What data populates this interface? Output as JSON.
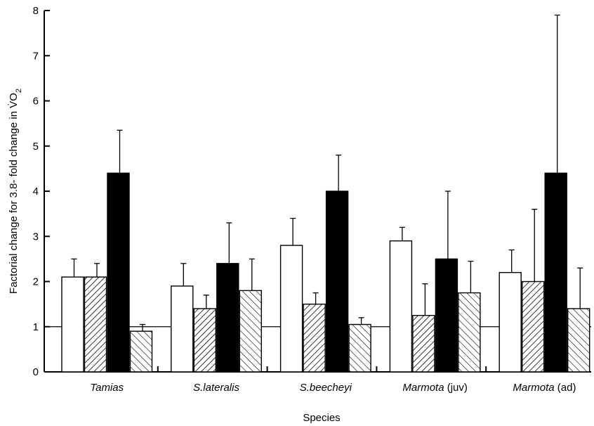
{
  "chart_data": {
    "type": "bar",
    "xlabel": "Species",
    "ylabel": "Factorial change for 3.8- fold change in V̇O₂",
    "ylim": [
      0,
      8
    ],
    "yticks": [
      "0",
      "1",
      "2",
      "3",
      "4",
      "5",
      "6",
      "7",
      "8"
    ],
    "reference_line": 1,
    "categories": [
      {
        "name": "Tamias",
        "suffix": ""
      },
      {
        "name": "S.lateralis",
        "suffix": ""
      },
      {
        "name": "S.beecheyi",
        "suffix": ""
      },
      {
        "name": "Marmota",
        "suffix": " (juv)"
      },
      {
        "name": "Marmota",
        "suffix": " (ad)"
      }
    ],
    "series": [
      {
        "fill": "white",
        "values": [
          2.1,
          1.9,
          2.8,
          2.9,
          2.2
        ],
        "errors": [
          0.4,
          0.5,
          0.6,
          0.3,
          0.5
        ]
      },
      {
        "fill": "hatch-right",
        "values": [
          2.1,
          1.4,
          1.5,
          1.25,
          2.0
        ],
        "errors": [
          0.3,
          0.3,
          0.25,
          0.7,
          1.6
        ]
      },
      {
        "fill": "black",
        "values": [
          4.4,
          2.4,
          4.0,
          2.5,
          4.4
        ],
        "errors": [
          0.95,
          0.9,
          0.8,
          1.5,
          3.5
        ]
      },
      {
        "fill": "hatch-left",
        "values": [
          0.9,
          1.8,
          1.05,
          1.75,
          1.4
        ],
        "errors": [
          0.15,
          0.7,
          0.15,
          0.7,
          0.9
        ]
      }
    ],
    "legend": "none",
    "grid": false
  }
}
